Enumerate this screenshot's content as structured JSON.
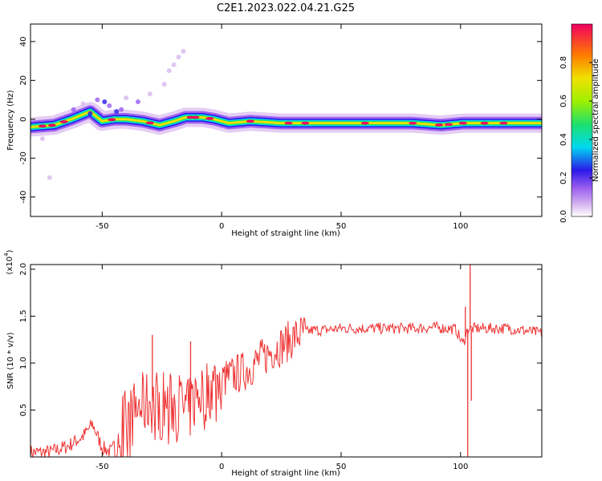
{
  "figure_title": "C2E1.2023.022.04.21.G25",
  "chart_data": [
    {
      "type": "heatmap",
      "title": "C2E1.2023.022.04.21.G25",
      "xlabel": "Height of straight line (km)",
      "ylabel": "Frequency (Hz)",
      "xlim": [
        -80,
        134
      ],
      "ylim": [
        -50,
        49
      ],
      "x_ticks": [
        -50,
        0,
        50,
        100
      ],
      "y_ticks": [
        -40,
        -20,
        0,
        20,
        40
      ],
      "colorbar": {
        "label": "Normalized spectral amplitude",
        "range": [
          0,
          1
        ],
        "ticks": [
          0.0,
          0.2,
          0.4,
          0.6,
          0.8
        ],
        "colormap": [
          "#ffffff",
          "#d8b8f0",
          "#9a5cf0",
          "#2a1ae8",
          "#00d8f0",
          "#1ee06a",
          "#a0f000",
          "#f0e000",
          "#ff7a00",
          "#f00060"
        ]
      },
      "ridge": [
        {
          "x": -80,
          "f": -4
        },
        {
          "x": -70,
          "f": -3
        },
        {
          "x": -63,
          "f": 0
        },
        {
          "x": -55,
          "f": 4
        },
        {
          "x": -50,
          "f": -1
        },
        {
          "x": -45,
          "f": 0
        },
        {
          "x": -40,
          "f": 0
        },
        {
          "x": -33,
          "f": -1
        },
        {
          "x": -26,
          "f": -3
        },
        {
          "x": -20,
          "f": -1
        },
        {
          "x": -15,
          "f": 1
        },
        {
          "x": -8,
          "f": 1
        },
        {
          "x": -3,
          "f": 0
        },
        {
          "x": 3,
          "f": -2
        },
        {
          "x": 12,
          "f": -1
        },
        {
          "x": 25,
          "f": -2
        },
        {
          "x": 50,
          "f": -2
        },
        {
          "x": 80,
          "f": -2
        },
        {
          "x": 92,
          "f": -3
        },
        {
          "x": 101,
          "f": -2
        },
        {
          "x": 134,
          "f": -2
        }
      ]
    },
    {
      "type": "line",
      "xlabel": "Height of straight line (km)",
      "ylabel": "SNR (10 * v/v)",
      "y_multiplier": "(x10",
      "y_multiplier_exp": "4",
      "y_multiplier_close": ")",
      "xlim": [
        -80,
        134
      ],
      "ylim": [
        0,
        2.05
      ],
      "x_ticks": [
        -50,
        0,
        50,
        100
      ],
      "y_ticks": [
        0.5,
        1.0,
        1.5,
        2.0
      ],
      "y_tick_labels": [
        "0.5",
        "1.0",
        "1.5",
        "2.0"
      ],
      "color": "#ee3333",
      "series": [
        {
          "x": [
            -80,
            -72,
            -64,
            -58,
            -54,
            -50,
            -46,
            -42,
            -38,
            -34,
            -30,
            -26,
            -22,
            -18,
            -14,
            -10,
            -6,
            -2,
            2,
            6,
            10,
            14,
            18,
            22,
            26,
            30,
            34,
            38,
            42,
            46,
            50,
            60,
            70,
            80,
            90,
            98,
            101,
            103,
            106,
            110,
            120,
            134
          ],
          "values": [
            0.05,
            0.05,
            0.12,
            0.22,
            0.35,
            0.1,
            0.05,
            0.35,
            0.42,
            0.55,
            0.58,
            0.62,
            0.55,
            0.58,
            0.48,
            0.68,
            0.72,
            0.8,
            0.84,
            0.88,
            0.92,
            1.0,
            1.07,
            1.15,
            1.2,
            1.27,
            1.32,
            1.35,
            1.35,
            1.36,
            1.37,
            1.37,
            1.37,
            1.37,
            1.38,
            1.36,
            1.2,
            1.36,
            1.37,
            1.37,
            1.37,
            1.32
          ]
        }
      ],
      "spikes": [
        {
          "x": 102,
          "y": 1.6
        },
        {
          "x": 103,
          "y": 0.0
        },
        {
          "x": 104,
          "y": 2.05
        },
        {
          "x": 104.5,
          "y": 0.6
        },
        {
          "x": -29,
          "y": 1.3
        },
        {
          "x": -13,
          "y": 1.23
        }
      ]
    }
  ]
}
